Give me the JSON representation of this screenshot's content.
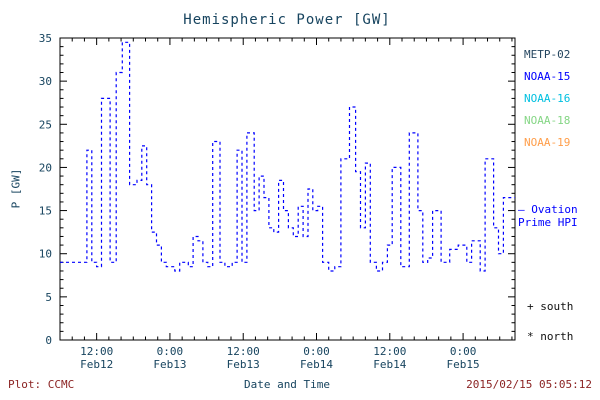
{
  "title": "Hemispheric Power [GW]",
  "colors": {
    "background": "#ffffff",
    "frame": "#000000",
    "axis_text": "#17445f",
    "line": "#0000ff",
    "footer_text": "#8b2323"
  },
  "legend": {
    "satellites": [
      {
        "label": "METP-02",
        "color": "#24455f"
      },
      {
        "label": "NOAA-15",
        "color": "#0000ff"
      },
      {
        "label": "NOAA-16",
        "color": "#00c0e0"
      },
      {
        "label": "NOAA-18",
        "color": "#85d685"
      },
      {
        "label": "NOAA-19",
        "color": "#ff9e4a"
      }
    ],
    "ovation": {
      "dash": "–",
      "line1": "Ovation",
      "line2": "Prime HPI",
      "color": "#0000ff"
    },
    "markers": [
      {
        "symbol": "+",
        "label": "south"
      },
      {
        "symbol": "*",
        "label": "north"
      }
    ]
  },
  "footer": {
    "left": "Plot: CCMC",
    "timestamp": "2015/02/15 05:05:12"
  },
  "chart_data": {
    "type": "line",
    "step": true,
    "title": "Hemispheric Power [GW]",
    "xlabel": "Date and Time",
    "ylabel": "P [GW]",
    "ylim": [
      0,
      35
    ],
    "xlim_hours_from_feb12_00": [
      6,
      80.5
    ],
    "y_ticks": [
      0,
      5,
      10,
      15,
      20,
      25,
      30,
      35
    ],
    "x_ticks": [
      {
        "hour": 12,
        "time": "12:00",
        "date": "Feb12"
      },
      {
        "hour": 24,
        "time": "0:00",
        "date": "Feb13"
      },
      {
        "hour": 36,
        "time": "12:00",
        "date": "Feb13"
      },
      {
        "hour": 48,
        "time": "0:00",
        "date": "Feb14"
      },
      {
        "hour": 60,
        "time": "12:00",
        "date": "Feb14"
      },
      {
        "hour": 72,
        "time": "0:00",
        "date": "Feb15"
      }
    ],
    "grid": false,
    "legend_position": "right",
    "series": [
      {
        "name": "Ovation Prime HPI",
        "color": "#0000ff",
        "dash": "3,3",
        "points": [
          [
            6,
            9
          ],
          [
            10.4,
            22
          ],
          [
            11.2,
            9
          ],
          [
            12.0,
            8.5
          ],
          [
            12.8,
            28
          ],
          [
            14.2,
            9
          ],
          [
            15.2,
            31
          ],
          [
            16.2,
            34.5
          ],
          [
            17.4,
            18
          ],
          [
            18.6,
            18.5
          ],
          [
            19.4,
            22.5
          ],
          [
            20.2,
            18
          ],
          [
            21.0,
            12.5
          ],
          [
            21.8,
            11
          ],
          [
            22.6,
            9
          ],
          [
            23.4,
            8.5
          ],
          [
            24.8,
            8
          ],
          [
            25.6,
            9
          ],
          [
            27.0,
            8.5
          ],
          [
            27.8,
            12
          ],
          [
            28.6,
            11.5
          ],
          [
            29.4,
            9
          ],
          [
            30.2,
            8.5
          ],
          [
            31.0,
            23
          ],
          [
            32.2,
            9
          ],
          [
            33.0,
            8.5
          ],
          [
            34.2,
            9
          ],
          [
            35.0,
            22
          ],
          [
            35.8,
            9
          ],
          [
            36.6,
            24
          ],
          [
            37.8,
            15
          ],
          [
            38.6,
            19
          ],
          [
            39.4,
            16.5
          ],
          [
            40.2,
            13
          ],
          [
            41.0,
            12.5
          ],
          [
            41.8,
            18.5
          ],
          [
            42.6,
            15
          ],
          [
            43.4,
            13
          ],
          [
            44.2,
            12
          ],
          [
            45.0,
            15.5
          ],
          [
            45.8,
            12
          ],
          [
            46.6,
            17.5
          ],
          [
            47.4,
            15
          ],
          [
            48.2,
            15.5
          ],
          [
            49.0,
            9
          ],
          [
            50.0,
            8
          ],
          [
            51.0,
            8.5
          ],
          [
            52.0,
            21
          ],
          [
            53.4,
            27
          ],
          [
            54.4,
            19.5
          ],
          [
            55.2,
            13
          ],
          [
            56.0,
            20.5
          ],
          [
            56.8,
            9
          ],
          [
            57.8,
            8
          ],
          [
            58.8,
            9
          ],
          [
            59.6,
            11
          ],
          [
            60.4,
            20
          ],
          [
            61.8,
            8.5
          ],
          [
            63.2,
            24
          ],
          [
            64.6,
            15
          ],
          [
            65.4,
            9
          ],
          [
            66.2,
            9.5
          ],
          [
            67.0,
            15
          ],
          [
            68.4,
            9
          ],
          [
            69.8,
            10.5
          ],
          [
            71.2,
            11
          ],
          [
            72.6,
            9
          ],
          [
            73.4,
            11.5
          ],
          [
            74.8,
            8
          ],
          [
            75.6,
            21
          ],
          [
            77.0,
            13
          ],
          [
            77.8,
            10
          ],
          [
            78.6,
            16.5
          ]
        ]
      }
    ]
  }
}
